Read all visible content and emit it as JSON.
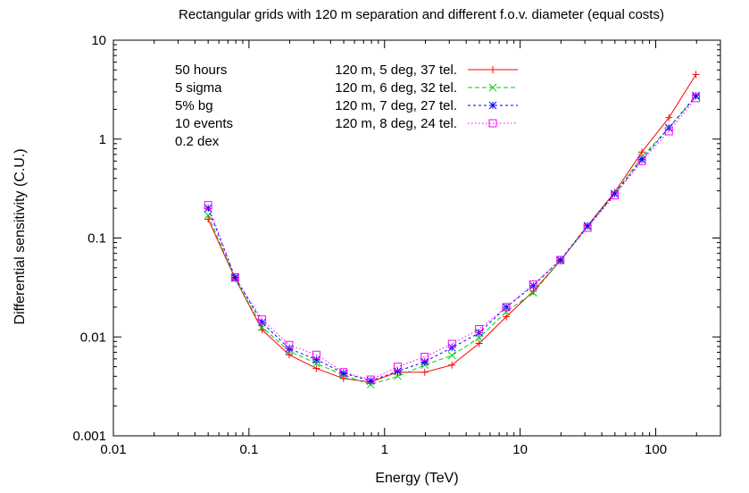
{
  "chart_data": {
    "type": "line",
    "title": "Rectangular grids with 120 m separation and different f.o.v. diameter (equal costs)",
    "xlabel": "Energy (TeV)",
    "ylabel": "Differential sensitivity (C.U.)",
    "xscale": "log",
    "yscale": "log",
    "xlim": [
      0.01,
      300
    ],
    "ylim": [
      0.001,
      10
    ],
    "xticks": [
      {
        "value": 0.01,
        "label": "0.01"
      },
      {
        "value": 0.1,
        "label": "0.1"
      },
      {
        "value": 1,
        "label": "1"
      },
      {
        "value": 10,
        "label": "10"
      },
      {
        "value": 100,
        "label": "100"
      }
    ],
    "yticks": [
      {
        "value": 0.001,
        "label": "0.001"
      },
      {
        "value": 0.01,
        "label": "0.01"
      },
      {
        "value": 0.1,
        "label": "0.1"
      },
      {
        "value": 1,
        "label": "1"
      },
      {
        "value": 10,
        "label": "10"
      }
    ],
    "grid": false,
    "legend_position": "top-right",
    "annotations": [
      "50 hours",
      "5 sigma",
      "5% bg",
      "10 events",
      "0.2 dex"
    ],
    "x": [
      0.05,
      0.079,
      0.125,
      0.198,
      0.314,
      0.498,
      0.79,
      1.25,
      1.98,
      3.14,
      4.98,
      7.9,
      12.5,
      19.8,
      31.4,
      49.8,
      79,
      125,
      198
    ],
    "series": [
      {
        "name": "120 m, 5 deg, 37 tel.",
        "color": "#ff0000",
        "marker": "plus",
        "dash": "solid",
        "values": [
          0.155,
          0.039,
          0.0118,
          0.0066,
          0.0048,
          0.0038,
          0.0035,
          0.0044,
          0.0044,
          0.0052,
          0.0086,
          0.016,
          0.029,
          0.059,
          0.133,
          0.29,
          0.74,
          1.65,
          4.5
        ]
      },
      {
        "name": "120 m, 6 deg, 32 tel.",
        "color": "#00cc00",
        "marker": "cross",
        "dash": "5,3",
        "values": [
          0.17,
          0.039,
          0.0125,
          0.0072,
          0.0054,
          0.0041,
          0.0033,
          0.004,
          0.0052,
          0.0065,
          0.0098,
          0.018,
          0.028,
          0.059,
          0.13,
          0.28,
          0.66,
          1.3,
          2.7
        ]
      },
      {
        "name": "120 m, 7 deg, 27 tel.",
        "color": "#0000ff",
        "marker": "star",
        "dash": "3,3",
        "values": [
          0.2,
          0.04,
          0.014,
          0.0076,
          0.0059,
          0.0043,
          0.0036,
          0.0045,
          0.0056,
          0.0078,
          0.011,
          0.02,
          0.033,
          0.06,
          0.133,
          0.28,
          0.62,
          1.3,
          2.75
        ]
      },
      {
        "name": "120 m, 8 deg, 24 tel.",
        "color": "#ff00ff",
        "marker": "square",
        "dash": "1.5,2.5",
        "values": [
          0.215,
          0.04,
          0.015,
          0.0083,
          0.0066,
          0.0044,
          0.0037,
          0.005,
          0.0063,
          0.0085,
          0.012,
          0.02,
          0.034,
          0.06,
          0.127,
          0.27,
          0.6,
          1.2,
          2.6
        ]
      }
    ]
  }
}
